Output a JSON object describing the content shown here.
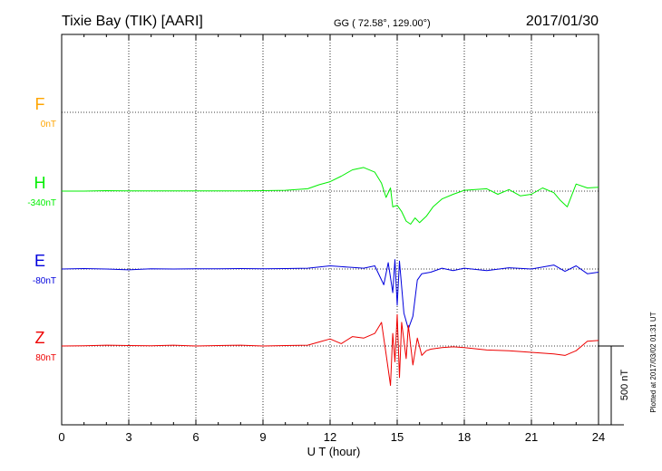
{
  "header": {
    "station": "Tixie Bay (TIK)  [AARI]",
    "coords": "GG ( 72.58°, 129.00°)",
    "date": "2017/01/30"
  },
  "footer": {
    "xlabel": "U T (hour)",
    "plotted": "Plotted at 2017/03/02 01:31  UT"
  },
  "scale_bar": {
    "label": "500 nT",
    "value_nT": 500
  },
  "chart_data": {
    "type": "line",
    "xlabel": "U T (hour)",
    "xlim": [
      0,
      24
    ],
    "xticks": [
      0,
      3,
      6,
      9,
      12,
      15,
      18,
      21,
      24
    ],
    "xtick_labels": [
      "0",
      "3",
      "6",
      "9",
      "12",
      "15",
      "18",
      "21",
      "24"
    ],
    "grid": true,
    "y_units": "nT",
    "series": [
      {
        "name": "F",
        "baseline": "0nT",
        "color": "#ffa500",
        "x": [],
        "values": []
      },
      {
        "name": "H",
        "baseline": "-340nT",
        "color": "#00ee00",
        "x": [
          0,
          1,
          2,
          3,
          4,
          5,
          6,
          7,
          8,
          9,
          10,
          11,
          11.5,
          12,
          12.5,
          13,
          13.5,
          14,
          14.3,
          14.5,
          14.7,
          14.8,
          15,
          15.2,
          15.4,
          15.6,
          15.8,
          16,
          16.3,
          16.6,
          17,
          17.5,
          18,
          18.5,
          19,
          19.5,
          20,
          20.5,
          21,
          21.5,
          22,
          22.3,
          22.6,
          23,
          23.5,
          24
        ],
        "values": [
          0,
          0,
          3,
          2,
          1,
          2,
          1,
          2,
          2,
          3,
          5,
          15,
          40,
          60,
          95,
          135,
          150,
          120,
          50,
          -40,
          20,
          -100,
          -90,
          -130,
          -190,
          -210,
          -170,
          -200,
          -160,
          -100,
          -50,
          -20,
          5,
          10,
          15,
          -20,
          10,
          -30,
          -20,
          20,
          -10,
          -60,
          -100,
          45,
          20,
          25
        ]
      },
      {
        "name": "E",
        "baseline": "-80nT",
        "color": "#0000dd",
        "x": [
          0,
          1,
          2,
          3,
          4,
          5,
          6,
          7,
          8,
          9,
          10,
          11,
          12,
          12.5,
          13,
          13.5,
          14,
          14.4,
          14.6,
          14.8,
          14.9,
          15,
          15.1,
          15.3,
          15.5,
          15.7,
          15.9,
          16.1,
          16.5,
          17,
          17.5,
          18,
          19,
          20,
          21,
          22,
          22.5,
          23,
          23.5,
          24
        ],
        "values": [
          0,
          3,
          0,
          -5,
          2,
          0,
          1,
          2,
          3,
          2,
          3,
          5,
          20,
          15,
          10,
          5,
          20,
          -100,
          40,
          -150,
          60,
          -230,
          50,
          -280,
          -380,
          -300,
          -70,
          -30,
          -20,
          5,
          -10,
          5,
          -10,
          8,
          0,
          25,
          -15,
          20,
          -30,
          -20
        ]
      },
      {
        "name": "Z",
        "baseline": "80nT",
        "color": "#ee0000",
        "x": [
          0,
          1,
          2,
          3,
          4,
          5,
          6,
          7,
          8,
          9,
          10,
          11,
          11.5,
          12,
          12.5,
          13,
          13.5,
          14,
          14.3,
          14.5,
          14.7,
          14.8,
          14.9,
          15,
          15.1,
          15.2,
          15.4,
          15.5,
          15.7,
          15.9,
          16.1,
          16.3,
          16.5,
          17,
          17.5,
          18,
          19,
          20,
          21,
          22,
          22.5,
          23,
          23.5,
          24
        ],
        "values": [
          0,
          2,
          5,
          3,
          2,
          5,
          0,
          3,
          5,
          0,
          3,
          5,
          25,
          45,
          15,
          60,
          50,
          80,
          150,
          -50,
          -250,
          80,
          -100,
          200,
          -200,
          150,
          -80,
          130,
          -120,
          50,
          -60,
          -30,
          -20,
          -10,
          -5,
          -10,
          -25,
          -30,
          -40,
          -50,
          -60,
          -30,
          30,
          35
        ]
      }
    ]
  }
}
